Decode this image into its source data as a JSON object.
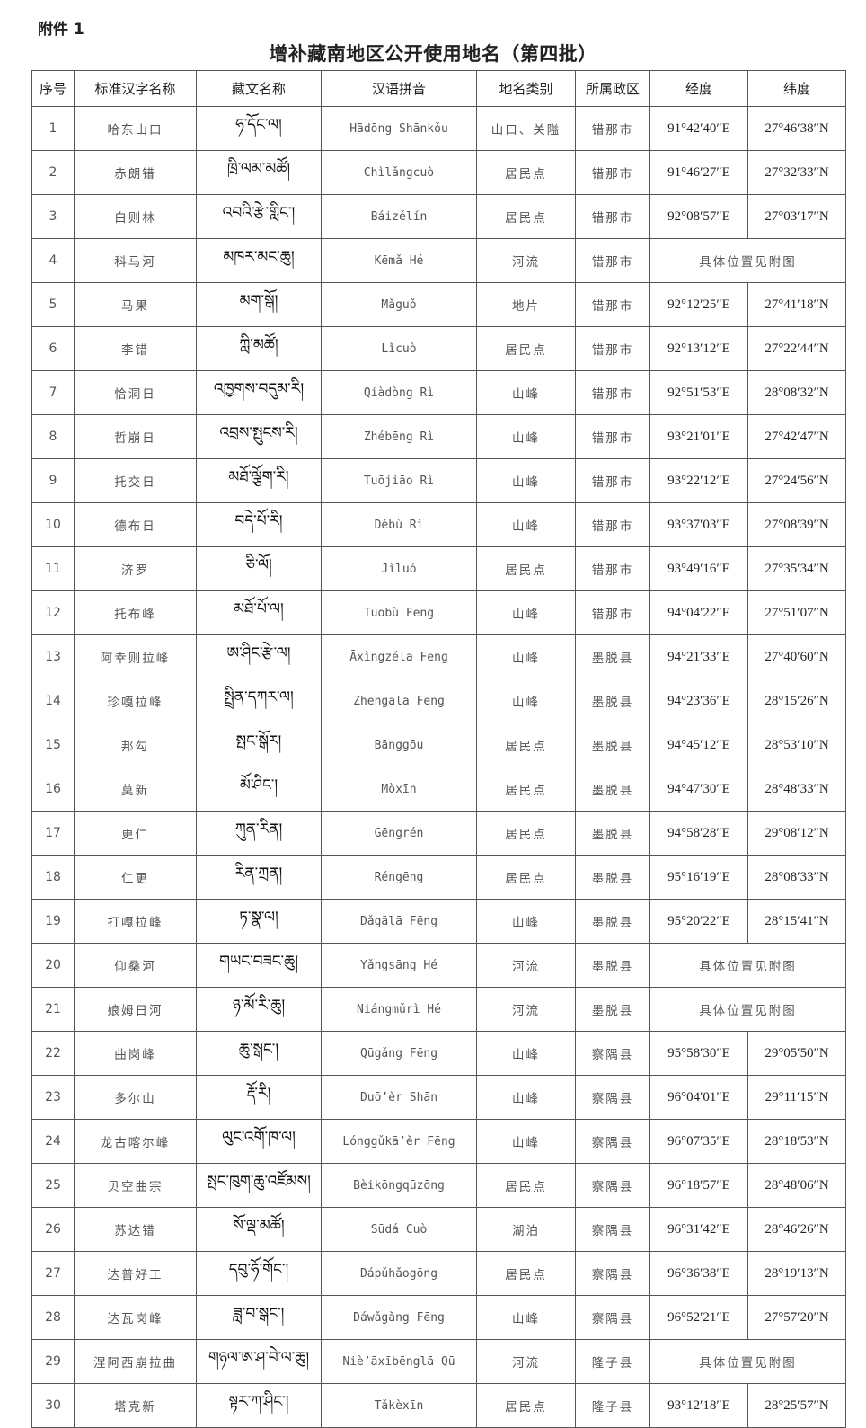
{
  "attachment_label": "附件 1",
  "title": "增补藏南地区公开使用地名（第四批）",
  "table": {
    "headers": [
      "序号",
      "标准汉字名称",
      "藏文名称",
      "汉语拼音",
      "地名类别",
      "所属政区",
      "经度",
      "纬度"
    ],
    "rows": [
      {
        "no": "1",
        "name": "哈东山口",
        "tibetan": "ཧ་དོང་ལ།",
        "pinyin": "Hādōng Shānkǒu",
        "type": "山口、关隘",
        "region": "错那市",
        "lon": "91°42′40″E",
        "lat": "27°46′38″N"
      },
      {
        "no": "2",
        "name": "赤朗错",
        "tibetan": "ཁྲི་ལམ་མཚོ།",
        "pinyin": "Chìlǎngcuò",
        "type": "居民点",
        "region": "错那市",
        "lon": "91°46′27″E",
        "lat": "27°32′33″N"
      },
      {
        "no": "3",
        "name": "白则林",
        "tibetan": "འབའི་རྩེ་གླིང་།",
        "pinyin": "Báizélín",
        "type": "居民点",
        "region": "错那市",
        "lon": "92°08′57″E",
        "lat": "27°03′17″N"
      },
      {
        "no": "4",
        "name": "科马河",
        "tibetan": "མཁར་མང་ཆུ།",
        "pinyin": "Kēmǎ Hé",
        "type": "河流",
        "region": "错那市",
        "location_note": "具体位置见附图"
      },
      {
        "no": "5",
        "name": "马果",
        "tibetan": "མག་སྒོ།",
        "pinyin": "Mǎguǒ",
        "type": "地片",
        "region": "错那市",
        "lon": "92°12′25″E",
        "lat": "27°41′18″N"
      },
      {
        "no": "6",
        "name": "李错",
        "tibetan": "ཀླི་མཚོ།",
        "pinyin": "Lǐcuò",
        "type": "居民点",
        "region": "错那市",
        "lon": "92°13′12″E",
        "lat": "27°22′44″N"
      },
      {
        "no": "7",
        "name": "恰洞日",
        "tibetan": "འཁྱགས་བདུམ་རི།",
        "pinyin": "Qiàdòng Rì",
        "type": "山峰",
        "region": "错那市",
        "lon": "92°51′53″E",
        "lat": "28°08′32″N"
      },
      {
        "no": "8",
        "name": "哲崩日",
        "tibetan": "འབྲས་སྤུངས་རི།",
        "pinyin": "Zhébēng Rì",
        "type": "山峰",
        "region": "错那市",
        "lon": "93°21′01″E",
        "lat": "27°42′47″N"
      },
      {
        "no": "9",
        "name": "托交日",
        "tibetan": "མཐོ་ལྕོག་རི།",
        "pinyin": "Tuōjiāo Rì",
        "type": "山峰",
        "region": "错那市",
        "lon": "93°22′12″E",
        "lat": "27°24′56″N"
      },
      {
        "no": "10",
        "name": "德布日",
        "tibetan": "བདེ་པོ་རི།",
        "pinyin": "Débù Rì",
        "type": "山峰",
        "region": "错那市",
        "lon": "93°37′03″E",
        "lat": "27°08′39″N"
      },
      {
        "no": "11",
        "name": "济罗",
        "tibetan": "ཅི་ལོ།",
        "pinyin": "Jìluó",
        "type": "居民点",
        "region": "错那市",
        "lon": "93°49′16″E",
        "lat": "27°35′34″N"
      },
      {
        "no": "12",
        "name": "托布峰",
        "tibetan": "མཐོ་པོ་ལ།",
        "pinyin": "Tuōbù Fēng",
        "type": "山峰",
        "region": "错那市",
        "lon": "94°04′22″E",
        "lat": "27°51′07″N"
      },
      {
        "no": "13",
        "name": "阿幸则拉峰",
        "tibetan": "ཨ་ཤིང་རྩེ་ལ།",
        "pinyin": "Āxìngzélā Fēng",
        "type": "山峰",
        "region": "墨脱县",
        "lon": "94°21′33″E",
        "lat": "27°40′60″N"
      },
      {
        "no": "14",
        "name": "珍嘎拉峰",
        "tibetan": "སྤྲིན་དཀར་ལ།",
        "pinyin": "Zhēngālā Fēng",
        "type": "山峰",
        "region": "墨脱县",
        "lon": "94°23′36″E",
        "lat": "28°15′26″N"
      },
      {
        "no": "15",
        "name": "邦勾",
        "tibetan": "སྤང་སྒོར།",
        "pinyin": "Bānggōu",
        "type": "居民点",
        "region": "墨脱县",
        "lon": "94°45′12″E",
        "lat": "28°53′10″N"
      },
      {
        "no": "16",
        "name": "莫新",
        "tibetan": "མོ་ཤིང་།",
        "pinyin": "Mòxīn",
        "type": "居民点",
        "region": "墨脱县",
        "lon": "94°47′30″E",
        "lat": "28°48′33″N"
      },
      {
        "no": "17",
        "name": "更仁",
        "tibetan": "ཀུན་རིན།",
        "pinyin": "Gēngrén",
        "type": "居民点",
        "region": "墨脱县",
        "lon": "94°58′28″E",
        "lat": "29°08′12″N"
      },
      {
        "no": "18",
        "name": "仁更",
        "tibetan": "རིན་ཀྲན།",
        "pinyin": "Réngēng",
        "type": "居民点",
        "region": "墨脱县",
        "lon": "95°16′19″E",
        "lat": "28°08′33″N"
      },
      {
        "no": "19",
        "name": "打嘎拉峰",
        "tibetan": "ཏ་སྣ་ལ།",
        "pinyin": "Dǎgālā Fēng",
        "type": "山峰",
        "region": "墨脱县",
        "lon": "95°20′22″E",
        "lat": "28°15′41″N"
      },
      {
        "no": "20",
        "name": "仰桑河",
        "tibetan": "གཡང་བཟང་ཆུ།",
        "pinyin": "Yǎngsāng Hé",
        "type": "河流",
        "region": "墨脱县",
        "location_note": "具体位置见附图"
      },
      {
        "no": "21",
        "name": "娘姆日河",
        "tibetan": "ཉ་མོ་རི་ཆུ།",
        "pinyin": "Niángmǔrì Hé",
        "type": "河流",
        "region": "墨脱县",
        "location_note": "具体位置见附图"
      },
      {
        "no": "22",
        "name": "曲岗峰",
        "tibetan": "ཆུ་སྒང་།",
        "pinyin": "Qūgǎng Fēng",
        "type": "山峰",
        "region": "察隅县",
        "lon": "95°58′30″E",
        "lat": "29°05′50″N"
      },
      {
        "no": "23",
        "name": "多尔山",
        "tibetan": "རྡོ་རི།",
        "pinyin": "Duō’ěr Shān",
        "type": "山峰",
        "region": "察隅县",
        "lon": "96°04′01″E",
        "lat": "29°11′15″N"
      },
      {
        "no": "24",
        "name": "龙古喀尔峰",
        "tibetan": "ལུང་འགོ་ཁ་ལ།",
        "pinyin": "Lónggǔkā’ěr Fēng",
        "type": "山峰",
        "region": "察隅县",
        "lon": "96°07′35″E",
        "lat": "28°18′53″N"
      },
      {
        "no": "25",
        "name": "贝空曲宗",
        "tibetan": "སྤང་ཁུག་ཆུ་འཛོམས།",
        "pinyin": "Bèikōngqūzōng",
        "type": "居民点",
        "region": "察隅县",
        "lon": "96°18′57″E",
        "lat": "28°48′06″N"
      },
      {
        "no": "26",
        "name": "苏达错",
        "tibetan": "སོ་ལྡ་མཚོ།",
        "pinyin": "Sūdá Cuò",
        "type": "湖泊",
        "region": "察隅县",
        "lon": "96°31′42″E",
        "lat": "28°46′26″N"
      },
      {
        "no": "27",
        "name": "达普好工",
        "tibetan": "དབུ་ཧོ་གོང་།",
        "pinyin": "Dápǔhǎogōng",
        "type": "居民点",
        "region": "察隅县",
        "lon": "96°36′38″E",
        "lat": "28°19′13″N"
      },
      {
        "no": "28",
        "name": "达瓦岗峰",
        "tibetan": "ཟླ་བ་སྒང་།",
        "pinyin": "Dáwǎgǎng Fēng",
        "type": "山峰",
        "region": "察隅县",
        "lon": "96°52′21″E",
        "lat": "27°57′20″N"
      },
      {
        "no": "29",
        "name": "涅阿西崩拉曲",
        "tibetan": "གཉལ་ཨ་ཤ་བེ་ལ་ཆུ།",
        "pinyin": "Niè’āxībēnglā Qū",
        "type": "河流",
        "region": "隆子县",
        "location_note": "具体位置见附图"
      },
      {
        "no": "30",
        "name": "塔克新",
        "tibetan": "སྟར་ཀ་ཤིང་།",
        "pinyin": "Tǎkèxīn",
        "type": "居民点",
        "region": "隆子县",
        "lon": "93°12′18″E",
        "lat": "28°25′57″N"
      }
    ]
  }
}
